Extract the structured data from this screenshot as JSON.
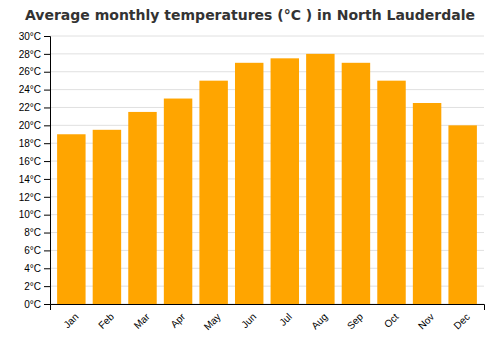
{
  "chart_data": {
    "type": "bar",
    "title": "Average monthly temperatures (°C ) in North Lauderdale",
    "categories": [
      "Jan",
      "Feb",
      "Mar",
      "Apr",
      "May",
      "Jun",
      "Jul",
      "Aug",
      "Sep",
      "Oct",
      "Nov",
      "Dec"
    ],
    "values": [
      19,
      19.5,
      21.5,
      23,
      25,
      27,
      27.5,
      28,
      27,
      25,
      22.5,
      20
    ],
    "color": "#FFA500",
    "ylim": [
      0,
      30
    ],
    "yticks": [
      {
        "value": 0,
        "label": "0°C"
      },
      {
        "value": 2,
        "label": "2°C"
      },
      {
        "value": 4,
        "label": "4°C"
      },
      {
        "value": 6,
        "label": "6°C"
      },
      {
        "value": 8,
        "label": "8°C"
      },
      {
        "value": 10,
        "label": "10°C"
      },
      {
        "value": 12,
        "label": "12°C"
      },
      {
        "value": 14,
        "label": "14°C"
      },
      {
        "value": 16,
        "label": "16°C"
      },
      {
        "value": 18,
        "label": "18°C"
      },
      {
        "value": 20,
        "label": "20°C"
      },
      {
        "value": 22,
        "label": "22°C"
      },
      {
        "value": 24,
        "label": "24°C"
      },
      {
        "value": 26,
        "label": "26°C"
      },
      {
        "value": 28,
        "label": "28°C"
      },
      {
        "value": 30,
        "label": "30°C"
      }
    ],
    "grid": true
  }
}
